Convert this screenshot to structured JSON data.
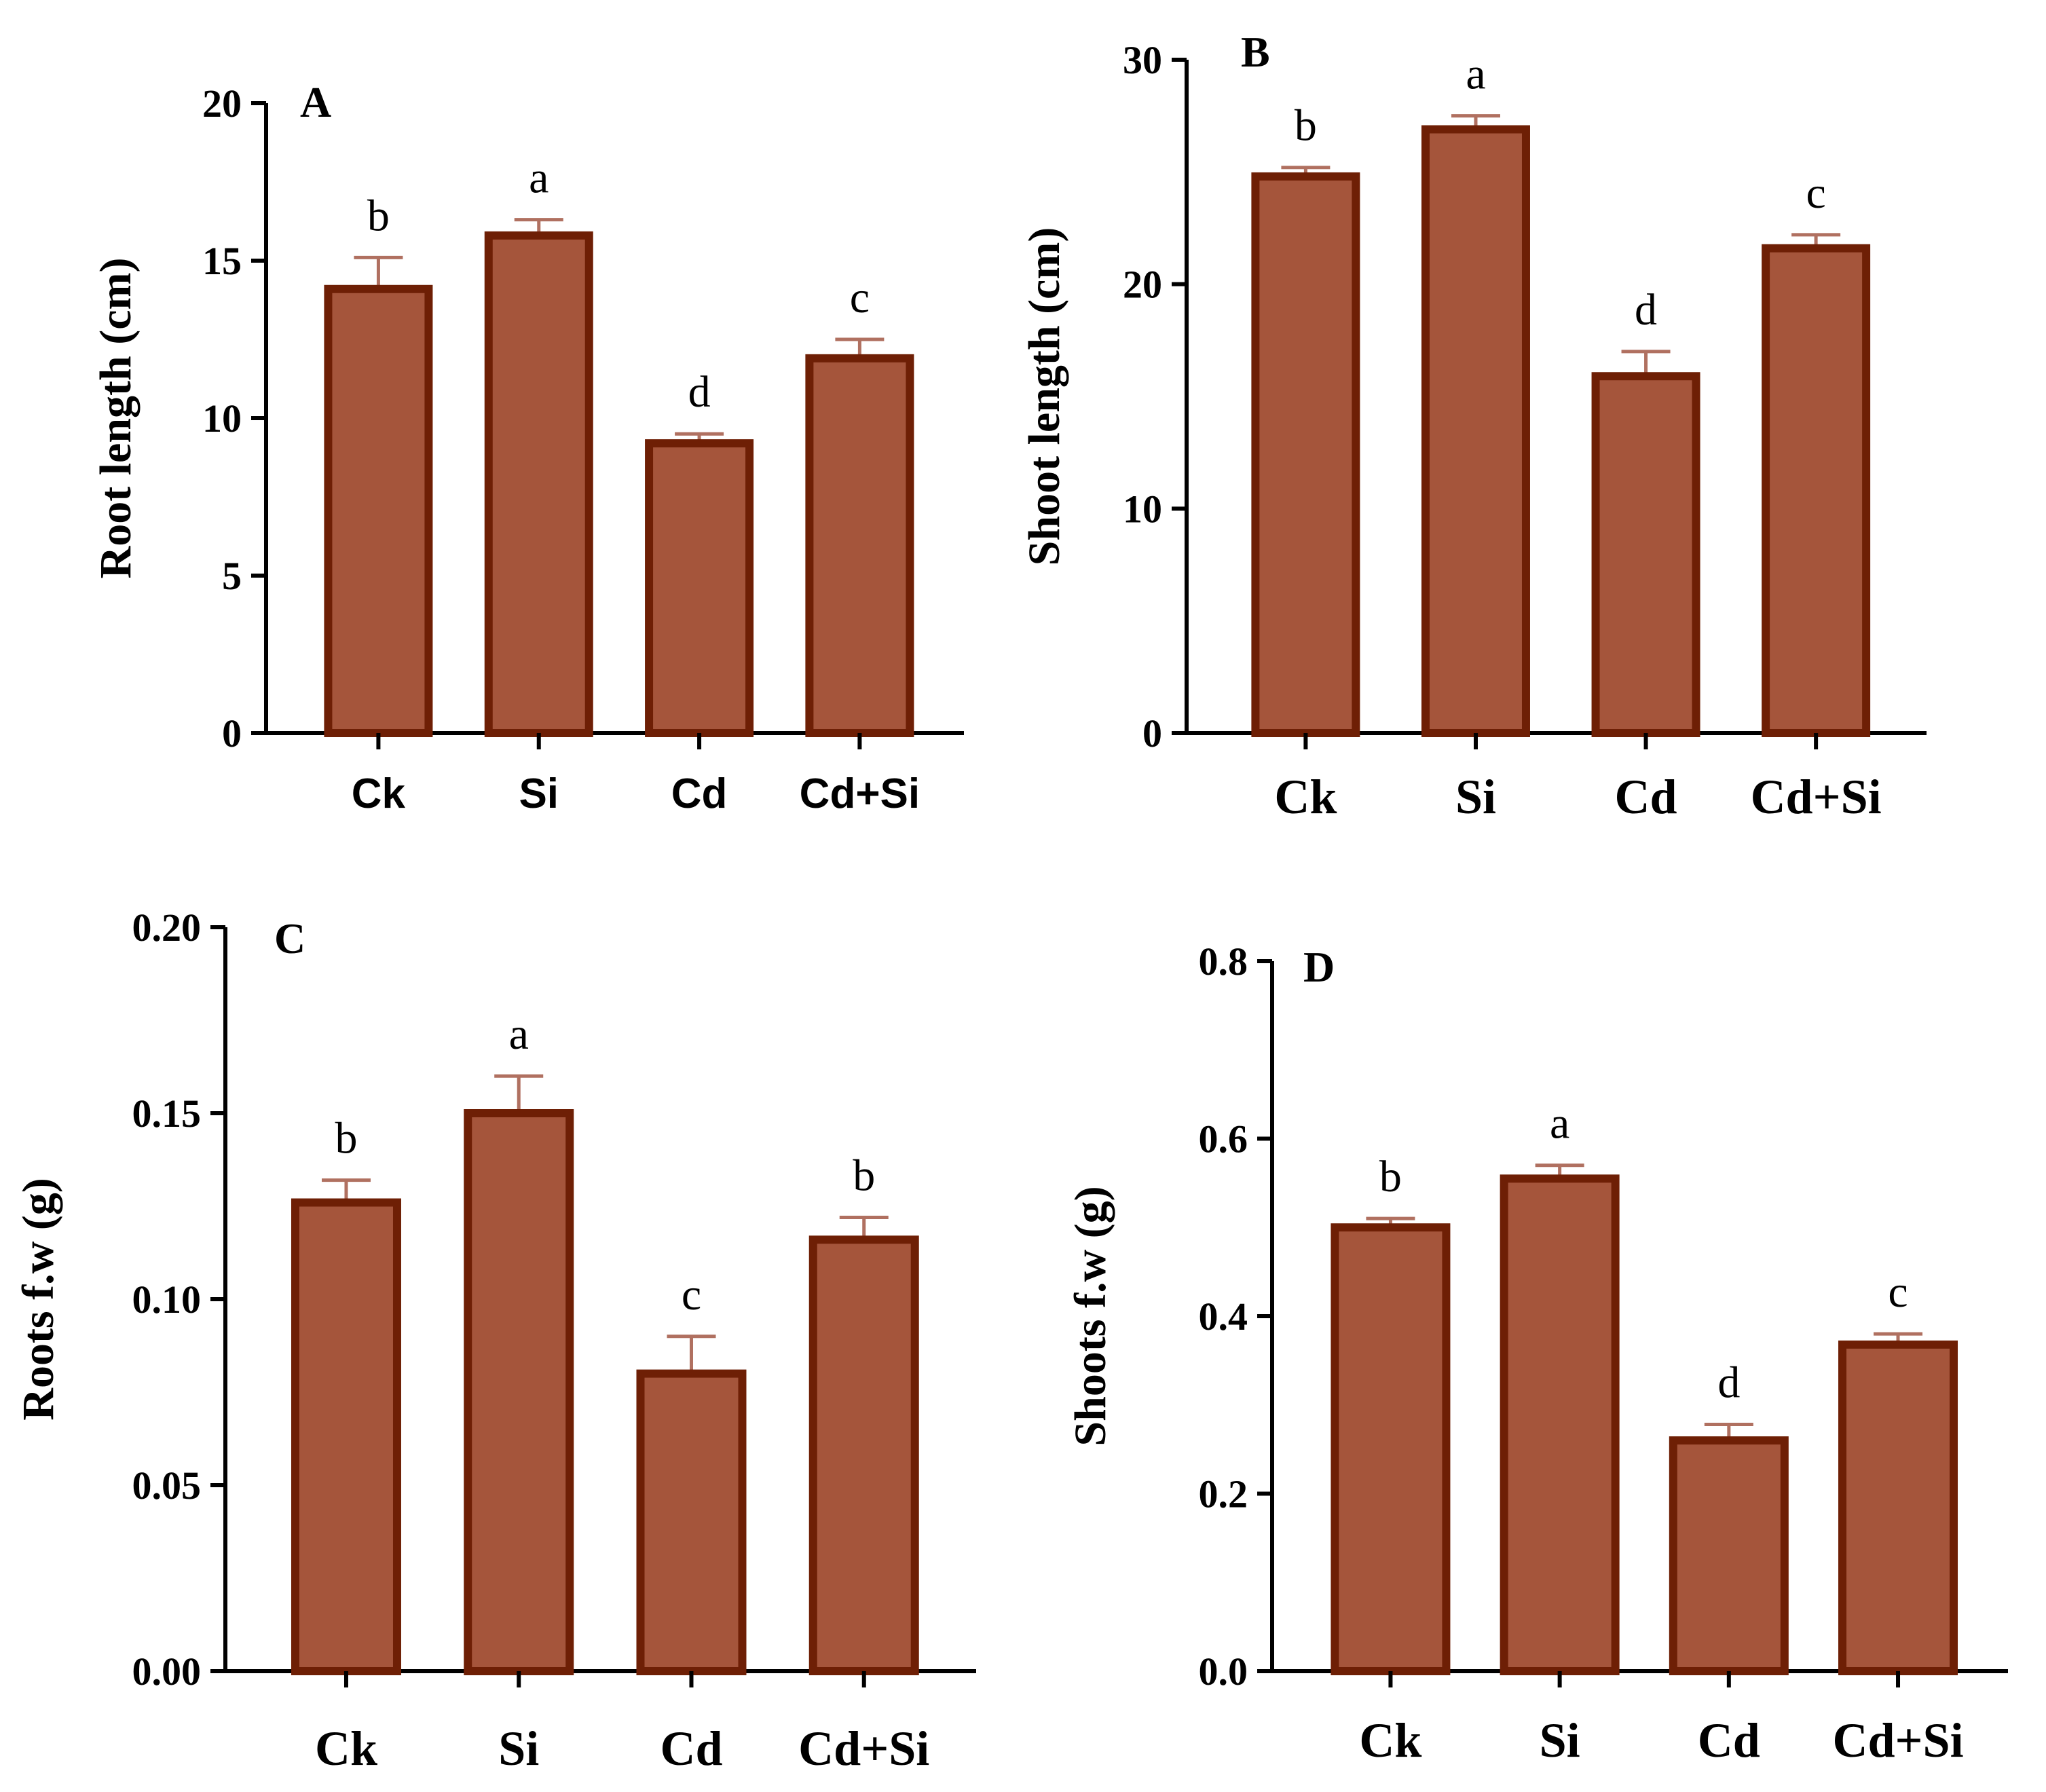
{
  "colors": {
    "bar_fill": "#a5553b",
    "bar_edge": "#6e1f05",
    "error_bar": "#b07060",
    "axis": "#000000"
  },
  "chart_data": [
    {
      "type": "bar",
      "panel": "A",
      "title": "",
      "xlabel": "",
      "ylabel": "Root length (cm)",
      "categories": [
        "Ck",
        "Si",
        "Cd",
        "Cd+Si"
      ],
      "values": [
        14.1,
        15.8,
        9.2,
        11.9
      ],
      "errors": [
        1.0,
        0.5,
        0.3,
        0.6
      ],
      "significance": [
        "b",
        "a",
        "d",
        "c"
      ],
      "ylim": [
        0,
        20
      ],
      "yticks": [
        0,
        5,
        10,
        15,
        20
      ],
      "ytick_labels": [
        "0",
        "5",
        "10",
        "15",
        "20"
      ]
    },
    {
      "type": "bar",
      "panel": "B",
      "title": "",
      "xlabel": "",
      "ylabel": "Shoot length (cm)",
      "categories": [
        "Ck",
        "Si",
        "Cd",
        "Cd+Si"
      ],
      "values": [
        24.8,
        26.9,
        15.9,
        21.6
      ],
      "errors": [
        0.4,
        0.6,
        1.1,
        0.6
      ],
      "significance": [
        "b",
        "a",
        "d",
        "c"
      ],
      "ylim": [
        0,
        30
      ],
      "yticks": [
        0,
        10,
        20,
        30
      ],
      "ytick_labels": [
        "0",
        "10",
        "20",
        "30"
      ]
    },
    {
      "type": "bar",
      "panel": "C",
      "title": "",
      "xlabel": "",
      "ylabel": "Roots f.w (g)",
      "categories": [
        "Ck",
        "Si",
        "Cd",
        "Cd+Si"
      ],
      "values": [
        0.126,
        0.15,
        0.08,
        0.116
      ],
      "errors": [
        0.006,
        0.01,
        0.01,
        0.006
      ],
      "significance": [
        "b",
        "a",
        "c",
        "b"
      ],
      "ylim": [
        0,
        0.2
      ],
      "yticks": [
        0,
        0.05,
        0.1,
        0.15,
        0.2
      ],
      "ytick_labels": [
        "0.00",
        "0.05",
        "0.10",
        "0.15",
        "0.20"
      ]
    },
    {
      "type": "bar",
      "panel": "D",
      "title": "",
      "xlabel": "",
      "ylabel": "Shoots f.w (g)",
      "categories": [
        "Ck",
        "Si",
        "Cd",
        "Cd+Si"
      ],
      "values": [
        0.5,
        0.555,
        0.26,
        0.368
      ],
      "errors": [
        0.01,
        0.015,
        0.018,
        0.012
      ],
      "significance": [
        "b",
        "a",
        "d",
        "c"
      ],
      "ylim": [
        0,
        0.8
      ],
      "yticks": [
        0,
        0.2,
        0.4,
        0.6,
        0.8
      ],
      "ytick_labels": [
        "0.0",
        "0.2",
        "0.4",
        "0.6",
        "0.8"
      ]
    }
  ]
}
